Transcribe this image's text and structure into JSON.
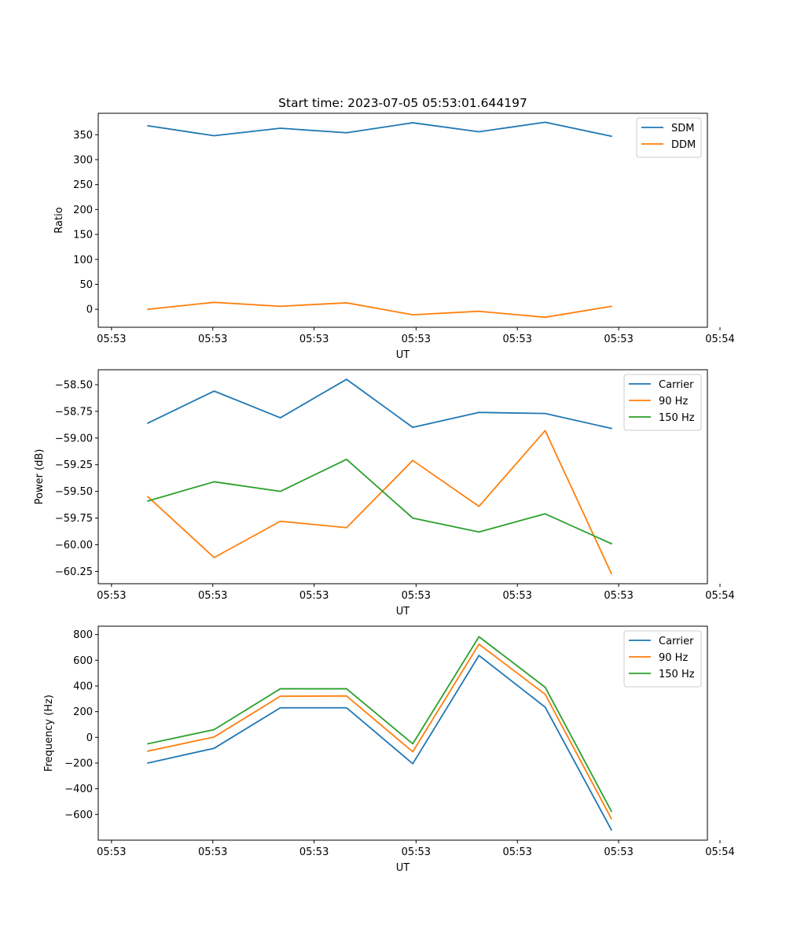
{
  "chart_data": [
    {
      "type": "line",
      "title": "Start time: 2023-07-05 05:53:01.644197",
      "xlabel": "UT",
      "ylabel": "Ratio",
      "x": [
        1,
        2,
        3,
        4,
        5,
        6,
        7,
        8
      ],
      "xlim": [
        0.25,
        9.45
      ],
      "ylim": [
        -36,
        393
      ],
      "xticks": [
        0.45,
        1.98,
        3.51,
        5.05,
        6.58,
        8.11,
        9.64
      ],
      "xtick_labels": [
        "05:53",
        "05:53",
        "05:53",
        "05:53",
        "05:53",
        "05:53",
        "05:54"
      ],
      "yticks": [
        0,
        50,
        100,
        150,
        200,
        250,
        300,
        350
      ],
      "ytick_labels": [
        "0",
        "50",
        "100",
        "150",
        "200",
        "250",
        "300",
        "350"
      ],
      "legend_position": "top-right",
      "series": [
        {
          "name": "SDM",
          "color": "#1f77b4",
          "values": [
            368,
            348,
            363,
            354,
            374,
            356,
            375,
            347
          ]
        },
        {
          "name": "DDM",
          "color": "#ff7f0e",
          "values": [
            0,
            14,
            6,
            13,
            -11,
            -4,
            -16,
            6
          ]
        }
      ]
    },
    {
      "type": "line",
      "title": "",
      "xlabel": "UT",
      "ylabel": "Power (dB)",
      "x": [
        1,
        2,
        3,
        4,
        5,
        6,
        7,
        8
      ],
      "xlim": [
        0.25,
        9.45
      ],
      "ylim": [
        -60.365,
        -58.36
      ],
      "xticks": [
        0.45,
        1.98,
        3.51,
        5.05,
        6.58,
        8.11,
        9.64
      ],
      "xtick_labels": [
        "05:53",
        "05:53",
        "05:53",
        "05:53",
        "05:53",
        "05:53",
        "05:54"
      ],
      "yticks": [
        -58.5,
        -58.75,
        -59.0,
        -59.25,
        -59.5,
        -59.75,
        -60.0,
        -60.25
      ],
      "ytick_labels": [
        "−58.50",
        "−58.75",
        "−59.00",
        "−59.25",
        "−59.50",
        "−59.75",
        "−60.00",
        "−60.25"
      ],
      "legend_position": "top-right",
      "series": [
        {
          "name": "Carrier",
          "color": "#1f77b4",
          "values": [
            -58.86,
            -58.56,
            -58.81,
            -58.45,
            -58.9,
            -58.76,
            -58.77,
            -58.91
          ]
        },
        {
          "name": "90 Hz",
          "color": "#ff7f0e",
          "values": [
            -59.55,
            -60.12,
            -59.78,
            -59.84,
            -59.21,
            -59.64,
            -58.93,
            -60.27
          ]
        },
        {
          "name": "150 Hz",
          "color": "#2ca02c",
          "values": [
            -59.59,
            -59.41,
            -59.5,
            -59.2,
            -59.75,
            -59.88,
            -59.71,
            -59.99
          ]
        }
      ]
    },
    {
      "type": "line",
      "title": "",
      "xlabel": "UT",
      "ylabel": "Frequency (Hz)",
      "x": [
        1,
        2,
        3,
        4,
        5,
        6,
        7,
        8
      ],
      "xlim": [
        0.25,
        9.45
      ],
      "ylim": [
        -800,
        865
      ],
      "xticks": [
        0.45,
        1.98,
        3.51,
        5.05,
        6.58,
        8.11,
        9.64
      ],
      "xtick_labels": [
        "05:53",
        "05:53",
        "05:53",
        "05:53",
        "05:53",
        "05:53",
        "05:54"
      ],
      "yticks": [
        800,
        600,
        400,
        200,
        0,
        -200,
        -400,
        -600
      ],
      "ytick_labels": [
        "800",
        "600",
        "400",
        "200",
        "0",
        "−200",
        "−400",
        "−600"
      ],
      "legend_position": "top-right",
      "series": [
        {
          "name": "Carrier",
          "color": "#1f77b4",
          "values": [
            -200,
            -85,
            230,
            230,
            -205,
            637,
            235,
            -720
          ]
        },
        {
          "name": "90 Hz",
          "color": "#ff7f0e",
          "values": [
            -107,
            3,
            320,
            322,
            -112,
            725,
            335,
            -633
          ]
        },
        {
          "name": "150 Hz",
          "color": "#2ca02c",
          "values": [
            -50,
            60,
            378,
            378,
            -50,
            783,
            390,
            -575
          ]
        }
      ]
    }
  ]
}
